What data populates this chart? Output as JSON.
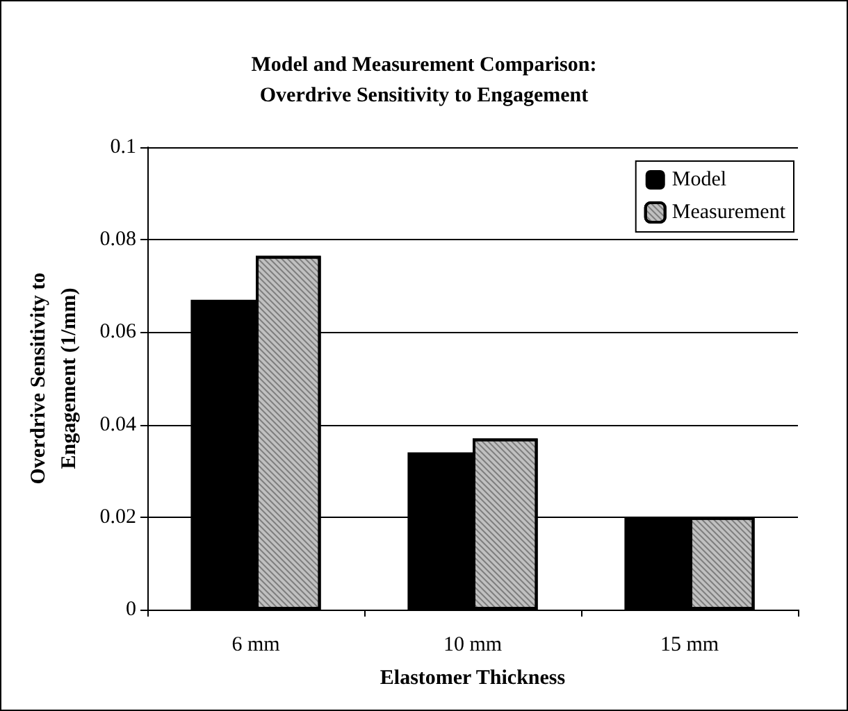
{
  "chart_data": {
    "type": "bar",
    "title": "Model and Measurement Comparison:\nOverdrive Sensitivity to Engagement",
    "xlabel": "Elastomer Thickness",
    "ylabel": "Overdrive Sensitivity to\nEngagement (1/mm)",
    "categories": [
      "6 mm",
      "10 mm",
      "15 mm"
    ],
    "series": [
      {
        "name": "Model",
        "color": "#000000",
        "values": [
          0.067,
          0.034,
          0.02
        ]
      },
      {
        "name": "Measurement",
        "color": "#c0c0c0",
        "values": [
          0.0765,
          0.037,
          0.02
        ]
      }
    ],
    "ylim": [
      0,
      0.1
    ],
    "yticks": [
      0,
      0.02,
      0.04,
      0.06,
      0.08,
      0.1
    ],
    "grid": "y",
    "legend": "top right"
  }
}
